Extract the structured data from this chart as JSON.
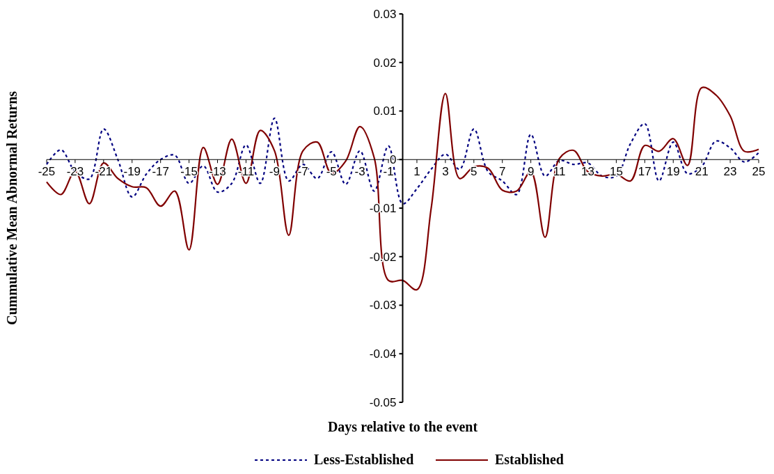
{
  "chart_data": {
    "type": "line",
    "xlabel": "Days relative to the event",
    "ylabel": "Cummulative Mean Abnormal Returns",
    "x": [
      -25,
      -24,
      -23,
      -22,
      -21,
      -20,
      -19,
      -18,
      -17,
      -16,
      -15,
      -14,
      -13,
      -12,
      -11,
      -10,
      -9,
      -8,
      -7,
      -6,
      -5,
      -4,
      -3,
      -2,
      -1,
      0,
      1,
      2,
      3,
      4,
      5,
      6,
      7,
      8,
      9,
      10,
      11,
      12,
      13,
      14,
      15,
      16,
      17,
      18,
      19,
      20,
      21,
      22,
      23,
      24,
      25
    ],
    "xlim": [
      -25,
      25
    ],
    "xticks": [
      -25,
      -23,
      -21,
      -19,
      -17,
      -15,
      -13,
      -11,
      -9,
      -7,
      -5,
      -3,
      -1,
      1,
      3,
      5,
      7,
      9,
      11,
      13,
      15,
      17,
      19,
      21,
      23,
      25
    ],
    "ylim": [
      -0.05,
      0.03
    ],
    "yticks": [
      -0.05,
      -0.04,
      -0.03,
      -0.02,
      -0.01,
      0,
      0.01,
      0.02,
      0.03
    ],
    "grid": false,
    "legend": "bottom",
    "marker": "none",
    "series": [
      {
        "name": "Less-Established",
        "color": "#000080",
        "line_style": "dashed",
        "values": [
          -0.001,
          0.002,
          -0.0025,
          -0.004,
          0.0063,
          0,
          -0.0077,
          -0.003,
          0,
          0.0009,
          -0.0049,
          -0.0013,
          -0.0067,
          -0.0049,
          0.003,
          -0.0049,
          0.0085,
          -0.0044,
          -0.001,
          -0.0039,
          0.0016,
          -0.0051,
          0.0018,
          -0.0065,
          0.0028,
          -0.0091,
          -0.006,
          -0.002,
          0.0011,
          -0.002,
          0.0063,
          -0.0025,
          -0.0044,
          -0.0072,
          0.0052,
          -0.0034,
          -0.0002,
          -0.001,
          -0.0007,
          -0.0034,
          -0.0034,
          0.0033,
          0.0074,
          -0.0044,
          0.0036,
          -0.0029,
          -0.0014,
          0.0038,
          0.0024,
          -0.0005,
          0.0014
        ]
      },
      {
        "name": "Established",
        "color": "#800000",
        "line_style": "solid",
        "values": [
          -0.0046,
          -0.0072,
          -0.0024,
          -0.0091,
          -0.0007,
          -0.0039,
          -0.0056,
          -0.0058,
          -0.0096,
          -0.0065,
          -0.0186,
          0.0025,
          -0.0051,
          0.0042,
          -0.0049,
          0.006,
          0.0018,
          -0.0156,
          0.0018,
          0.0036,
          -0.0029,
          -0.0003,
          0.0068,
          0.0004,
          -0.0249,
          -0.0249,
          -0.0268,
          -0.0101,
          0.0136,
          -0.0039,
          -0.0015,
          -0.0018,
          -0.0063,
          -0.0065,
          -0.0025,
          -0.016,
          0.0002,
          0.0019,
          -0.0025,
          -0.0034,
          -0.003,
          -0.0044,
          0.0029,
          0.0017,
          0.0043,
          -0.0012,
          0.0148,
          0.0133,
          0.009,
          0.0017,
          0.0021
        ]
      }
    ]
  }
}
